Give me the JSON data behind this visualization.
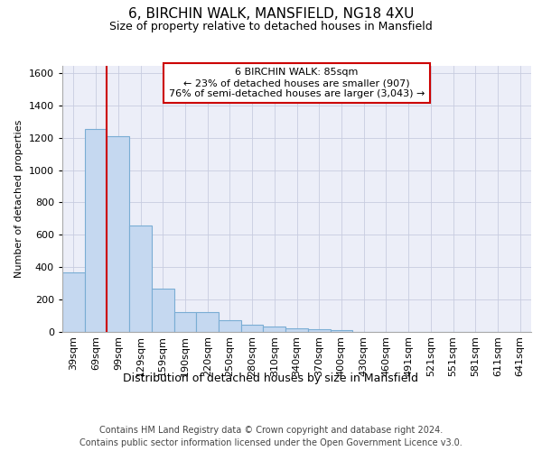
{
  "title": "6, BIRCHIN WALK, MANSFIELD, NG18 4XU",
  "subtitle": "Size of property relative to detached houses in Mansfield",
  "xlabel": "Distribution of detached houses by size in Mansfield",
  "ylabel": "Number of detached properties",
  "footer_line1": "Contains HM Land Registry data © Crown copyright and database right 2024.",
  "footer_line2": "Contains public sector information licensed under the Open Government Licence v3.0.",
  "categories": [
    "39sqm",
    "69sqm",
    "99sqm",
    "129sqm",
    "159sqm",
    "190sqm",
    "220sqm",
    "250sqm",
    "280sqm",
    "310sqm",
    "340sqm",
    "370sqm",
    "400sqm",
    "430sqm",
    "460sqm",
    "491sqm",
    "521sqm",
    "551sqm",
    "581sqm",
    "611sqm",
    "641sqm"
  ],
  "values": [
    365,
    1255,
    1210,
    655,
    265,
    120,
    120,
    70,
    40,
    30,
    20,
    15,
    10,
    0,
    0,
    0,
    0,
    0,
    0,
    0,
    0
  ],
  "bar_color": "#c5d8f0",
  "bar_edge_color": "#7aadd4",
  "annotation_text_line1": "6 BIRCHIN WALK: 85sqm",
  "annotation_text_line2": "← 23% of detached houses are smaller (907)",
  "annotation_text_line3": "76% of semi-detached houses are larger (3,043) →",
  "annotation_box_color": "#ffffff",
  "annotation_box_edge": "#cc0000",
  "vline_color": "#cc0000",
  "ylim": [
    0,
    1650
  ],
  "yticks": [
    0,
    200,
    400,
    600,
    800,
    1000,
    1200,
    1400,
    1600
  ],
  "grid_color": "#c8cce0",
  "bg_color": "#eceef8",
  "title_fontsize": 11,
  "subtitle_fontsize": 9,
  "ylabel_fontsize": 8,
  "xlabel_fontsize": 9,
  "tick_fontsize": 8,
  "annotation_fontsize": 8,
  "footer_fontsize": 7
}
